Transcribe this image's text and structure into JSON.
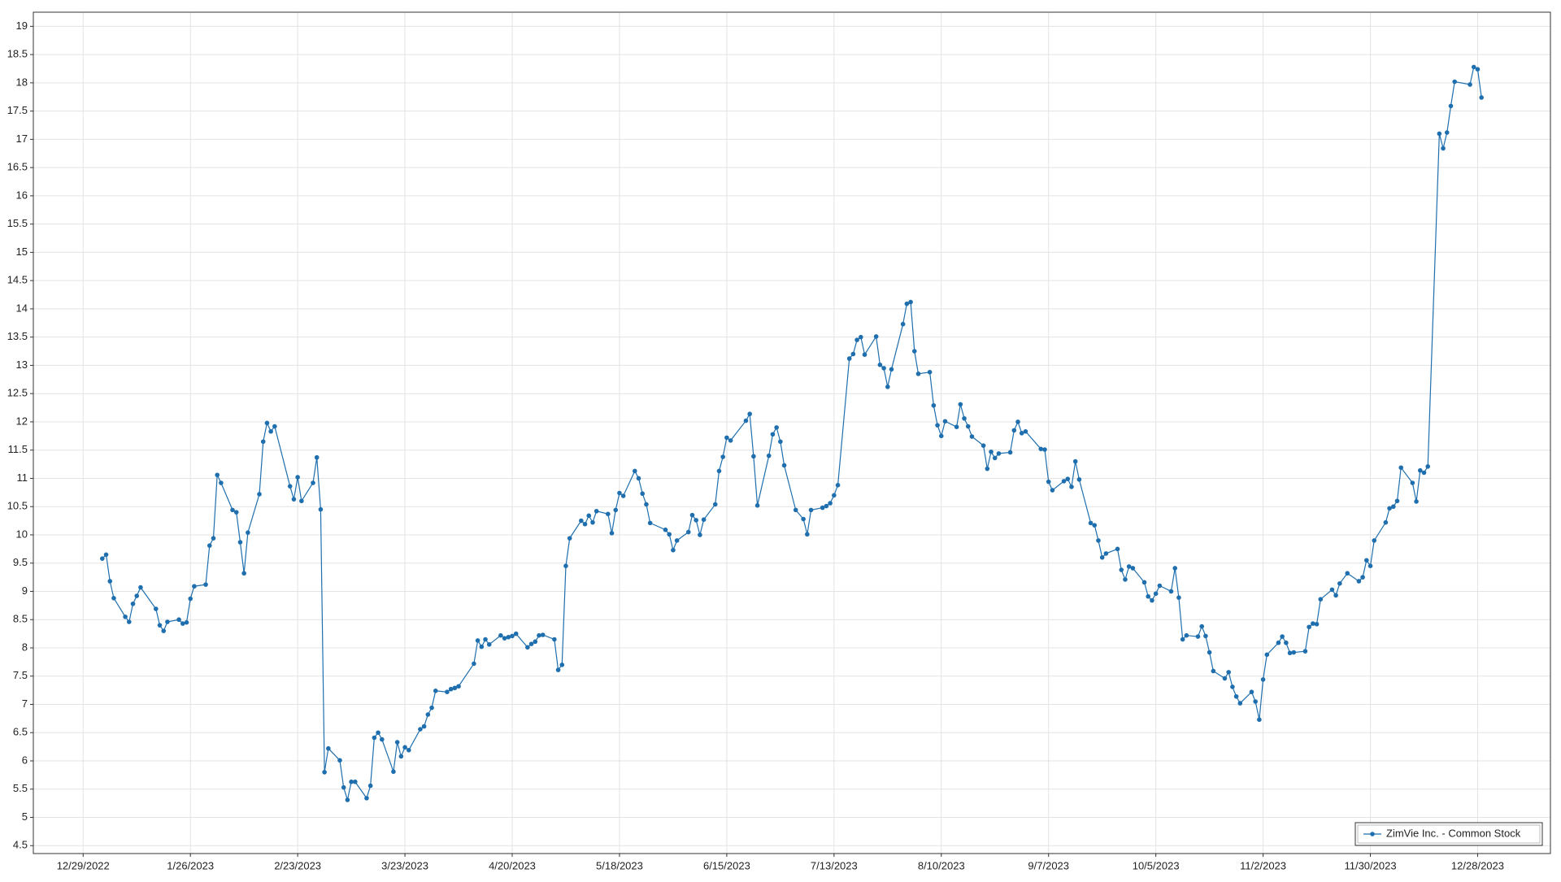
{
  "chart_data": {
    "type": "line",
    "x": [
      "1/3/2023",
      "1/4/2023",
      "1/5/2023",
      "1/6/2023",
      "1/9/2023",
      "1/10/2023",
      "1/11/2023",
      "1/12/2023",
      "1/13/2023",
      "1/17/2023",
      "1/18/2023",
      "1/19/2023",
      "1/20/2023",
      "1/23/2023",
      "1/24/2023",
      "1/25/2023",
      "1/26/2023",
      "1/27/2023",
      "1/30/2023",
      "1/31/2023",
      "2/1/2023",
      "2/2/2023",
      "2/3/2023",
      "2/6/2023",
      "2/7/2023",
      "2/8/2023",
      "2/9/2023",
      "2/10/2023",
      "2/13/2023",
      "2/14/2023",
      "2/15/2023",
      "2/16/2023",
      "2/17/2023",
      "2/21/2023",
      "2/22/2023",
      "2/23/2023",
      "2/24/2023",
      "2/27/2023",
      "2/28/2023",
      "3/1/2023",
      "3/2/2023",
      "3/3/2023",
      "3/6/2023",
      "3/7/2023",
      "3/8/2023",
      "3/9/2023",
      "3/10/2023",
      "3/13/2023",
      "3/14/2023",
      "3/15/2023",
      "3/16/2023",
      "3/17/2023",
      "3/20/2023",
      "3/21/2023",
      "3/22/2023",
      "3/23/2023",
      "3/24/2023",
      "3/27/2023",
      "3/28/2023",
      "3/29/2023",
      "3/30/2023",
      "3/31/2023",
      "4/3/2023",
      "4/4/2023",
      "4/5/2023",
      "4/6/2023",
      "4/10/2023",
      "4/11/2023",
      "4/12/2023",
      "4/13/2023",
      "4/14/2023",
      "4/17/2023",
      "4/18/2023",
      "4/19/2023",
      "4/20/2023",
      "4/21/2023",
      "4/24/2023",
      "4/25/2023",
      "4/26/2023",
      "4/27/2023",
      "4/28/2023",
      "5/1/2023",
      "5/2/2023",
      "5/3/2023",
      "5/4/2023",
      "5/5/2023",
      "5/8/2023",
      "5/9/2023",
      "5/10/2023",
      "5/11/2023",
      "5/12/2023",
      "5/15/2023",
      "5/16/2023",
      "5/17/2023",
      "5/18/2023",
      "5/19/2023",
      "5/22/2023",
      "5/23/2023",
      "5/24/2023",
      "5/25/2023",
      "5/26/2023",
      "5/30/2023",
      "5/31/2023",
      "6/1/2023",
      "6/2/2023",
      "6/5/2023",
      "6/6/2023",
      "6/7/2023",
      "6/8/2023",
      "6/9/2023",
      "6/12/2023",
      "6/13/2023",
      "6/14/2023",
      "6/15/2023",
      "6/16/2023",
      "6/20/2023",
      "6/21/2023",
      "6/22/2023",
      "6/23/2023",
      "6/26/2023",
      "6/27/2023",
      "6/28/2023",
      "6/29/2023",
      "6/30/2023",
      "7/3/2023",
      "7/5/2023",
      "7/6/2023",
      "7/7/2023",
      "7/10/2023",
      "7/11/2023",
      "7/12/2023",
      "7/13/2023",
      "7/14/2023",
      "7/17/2023",
      "7/18/2023",
      "7/19/2023",
      "7/20/2023",
      "7/21/2023",
      "7/24/2023",
      "7/25/2023",
      "7/26/2023",
      "7/27/2023",
      "7/28/2023",
      "7/31/2023",
      "8/1/2023",
      "8/2/2023",
      "8/3/2023",
      "8/4/2023",
      "8/7/2023",
      "8/8/2023",
      "8/9/2023",
      "8/10/2023",
      "8/11/2023",
      "8/14/2023",
      "8/15/2023",
      "8/16/2023",
      "8/17/2023",
      "8/18/2023",
      "8/21/2023",
      "8/22/2023",
      "8/23/2023",
      "8/24/2023",
      "8/25/2023",
      "8/28/2023",
      "8/29/2023",
      "8/30/2023",
      "8/31/2023",
      "9/1/2023",
      "9/5/2023",
      "9/6/2023",
      "9/7/2023",
      "9/8/2023",
      "9/11/2023",
      "9/12/2023",
      "9/13/2023",
      "9/14/2023",
      "9/15/2023",
      "9/18/2023",
      "9/19/2023",
      "9/20/2023",
      "9/21/2023",
      "9/22/2023",
      "9/25/2023",
      "9/26/2023",
      "9/27/2023",
      "9/28/2023",
      "9/29/2023",
      "10/2/2023",
      "10/3/2023",
      "10/4/2023",
      "10/5/2023",
      "10/6/2023",
      "10/9/2023",
      "10/10/2023",
      "10/11/2023",
      "10/12/2023",
      "10/13/2023",
      "10/16/2023",
      "10/17/2023",
      "10/18/2023",
      "10/19/2023",
      "10/20/2023",
      "10/23/2023",
      "10/24/2023",
      "10/25/2023",
      "10/26/2023",
      "10/27/2023",
      "10/30/2023",
      "10/31/2023",
      "11/1/2023",
      "11/2/2023",
      "11/3/2023",
      "11/6/2023",
      "11/7/2023",
      "11/8/2023",
      "11/9/2023",
      "11/10/2023",
      "11/13/2023",
      "11/14/2023",
      "11/15/2023",
      "11/16/2023",
      "11/17/2023",
      "11/20/2023",
      "11/21/2023",
      "11/22/2023",
      "11/24/2023",
      "11/27/2023",
      "11/28/2023",
      "11/29/2023",
      "11/30/2023",
      "12/1/2023",
      "12/4/2023",
      "12/5/2023",
      "12/6/2023",
      "12/7/2023",
      "12/8/2023",
      "12/11/2023",
      "12/12/2023",
      "12/13/2023",
      "12/14/2023",
      "12/15/2023",
      "12/18/2023",
      "12/19/2023",
      "12/20/2023",
      "12/21/2023",
      "12/22/2023",
      "12/26/2023",
      "12/27/2023",
      "12/28/2023",
      "12/29/2023"
    ],
    "series": [
      {
        "name": "ZimVie Inc. - Common Stock",
        "color": "#1f6fae",
        "values": [
          9.58,
          9.65,
          9.18,
          8.88,
          8.55,
          8.46,
          8.78,
          8.92,
          9.07,
          8.69,
          8.4,
          8.3,
          8.46,
          8.5,
          8.43,
          8.45,
          8.87,
          9.09,
          9.12,
          9.81,
          9.94,
          11.06,
          10.92,
          10.44,
          10.4,
          9.87,
          9.32,
          10.04,
          10.72,
          11.65,
          11.98,
          11.83,
          11.92,
          10.86,
          10.63,
          11.02,
          10.6,
          10.92,
          11.37,
          10.45,
          5.8,
          6.22,
          6.01,
          5.53,
          5.31,
          5.63,
          5.63,
          5.34,
          5.56,
          6.41,
          6.5,
          6.38,
          5.81,
          6.33,
          6.08,
          6.24,
          6.19,
          6.56,
          6.61,
          6.82,
          6.94,
          7.24,
          7.22,
          7.27,
          7.29,
          7.32,
          7.72,
          8.13,
          8.02,
          8.15,
          8.06,
          8.22,
          8.17,
          8.19,
          8.21,
          8.25,
          8.01,
          8.07,
          8.11,
          8.22,
          8.23,
          8.15,
          7.61,
          7.7,
          9.45,
          9.94,
          10.25,
          10.19,
          10.34,
          10.22,
          10.42,
          10.37,
          10.03,
          10.44,
          10.74,
          10.69,
          11.13,
          11.0,
          10.73,
          10.54,
          10.21,
          10.09,
          10.01,
          9.73,
          9.9,
          10.05,
          10.35,
          10.26,
          10.0,
          10.27,
          10.54,
          11.13,
          11.38,
          11.72,
          11.67,
          12.02,
          12.14,
          11.39,
          10.52,
          11.4,
          11.78,
          11.9,
          11.65,
          11.23,
          10.44,
          10.28,
          10.01,
          10.44,
          10.48,
          10.51,
          10.56,
          10.7,
          10.88,
          13.12,
          13.2,
          13.45,
          13.5,
          13.19,
          13.51,
          13.01,
          12.95,
          12.62,
          12.93,
          13.73,
          14.09,
          14.12,
          13.25,
          12.85,
          12.88,
          12.29,
          11.94,
          11.75,
          12.01,
          11.91,
          12.31,
          12.06,
          11.92,
          11.74,
          11.58,
          11.17,
          11.47,
          11.36,
          11.44,
          11.46,
          11.85,
          12.0,
          11.8,
          11.83,
          11.52,
          11.51,
          10.94,
          10.79,
          10.95,
          10.99,
          10.85,
          11.3,
          10.98,
          10.21,
          10.17,
          9.9,
          9.6,
          9.67,
          9.75,
          9.38,
          9.21,
          9.44,
          9.41,
          9.16,
          8.91,
          8.84,
          8.96,
          9.1,
          9.0,
          9.41,
          8.89,
          8.15,
          8.22,
          8.2,
          8.38,
          8.21,
          7.92,
          7.59,
          7.46,
          7.57,
          7.31,
          7.14,
          7.02,
          7.22,
          7.05,
          6.73,
          7.44,
          7.88,
          8.09,
          8.2,
          8.09,
          7.91,
          7.92,
          7.94,
          8.37,
          8.43,
          8.42,
          8.86,
          9.03,
          8.93,
          9.14,
          9.32,
          9.18,
          9.25,
          9.55,
          9.45,
          9.9,
          10.22,
          10.47,
          10.5,
          10.6,
          11.19,
          10.92,
          10.59,
          11.14,
          11.1,
          11.21,
          17.1,
          16.84,
          17.12,
          17.59,
          18.02,
          17.97,
          18.28,
          18.24,
          17.74
        ]
      }
    ],
    "xlim": [
      "12/16/2022",
      "1/16/2024"
    ],
    "xticks": [
      "12/29/2022",
      "1/26/2023",
      "2/23/2023",
      "3/23/2023",
      "4/20/2023",
      "5/18/2023",
      "6/15/2023",
      "7/13/2023",
      "8/10/2023",
      "9/7/2023",
      "10/5/2023",
      "11/2/2023",
      "11/30/2023",
      "12/28/2023"
    ],
    "ylim": [
      4.36,
      19.25
    ],
    "yticks": [
      4.5,
      5,
      5.5,
      6,
      6.5,
      7,
      7.5,
      8,
      8.5,
      9,
      9.5,
      10,
      10.5,
      11,
      11.5,
      12,
      12.5,
      13,
      13.5,
      14,
      14.5,
      15,
      15.5,
      16,
      16.5,
      17,
      17.5,
      18,
      18.5,
      19
    ],
    "grid": true,
    "legend": "lower right"
  }
}
